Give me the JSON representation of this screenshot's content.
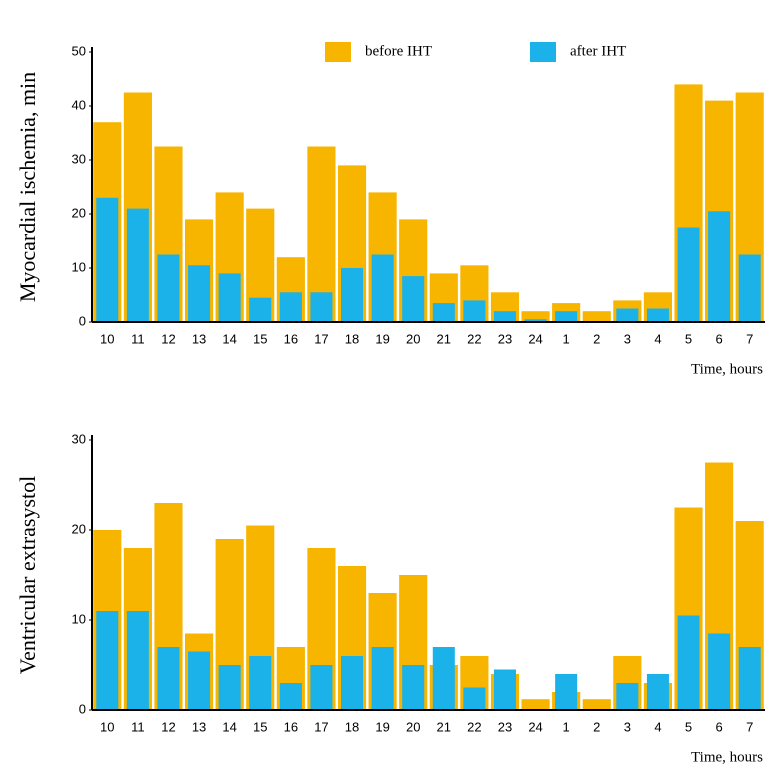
{
  "chart_data": [
    {
      "type": "bar",
      "y_label": "Myocardial ischemia, min",
      "x_label": "Time, hours",
      "categories": [
        "10",
        "11",
        "12",
        "13",
        "14",
        "15",
        "16",
        "17",
        "18",
        "19",
        "20",
        "21",
        "22",
        "23",
        "24",
        "1",
        "2",
        "3",
        "4",
        "5",
        "6",
        "7"
      ],
      "series": [
        {
          "name": "before IHT",
          "color": "#f7b500",
          "values": [
            37,
            42.5,
            32.5,
            19,
            24,
            21,
            12,
            32.5,
            29,
            24,
            19,
            9,
            10.5,
            5.5,
            2,
            3.5,
            2,
            4,
            5.5,
            44,
            41,
            42.5
          ]
        },
        {
          "name": "after IHT",
          "color": "#1ab2e8",
          "values": [
            23,
            21,
            12.5,
            10.5,
            9,
            4.5,
            5.5,
            5.5,
            10,
            12.5,
            8.5,
            3.5,
            4,
            2,
            0.5,
            2,
            0,
            2.5,
            2.5,
            17.5,
            20.5,
            12.5
          ]
        }
      ],
      "ylim": [
        0,
        50
      ],
      "yticks": [
        0,
        10,
        20,
        30,
        40,
        50
      ],
      "legend": "top"
    },
    {
      "type": "bar",
      "y_label": "Ventricular extrasystol",
      "x_label": "Time, hours",
      "categories": [
        "10",
        "11",
        "12",
        "13",
        "14",
        "15",
        "16",
        "17",
        "18",
        "19",
        "20",
        "21",
        "22",
        "23",
        "24",
        "1",
        "2",
        "3",
        "4",
        "5",
        "6",
        "7"
      ],
      "series": [
        {
          "name": "before IHT",
          "color": "#f7b500",
          "values": [
            20,
            18,
            23,
            8.5,
            19,
            20.5,
            7,
            18,
            16,
            13,
            15,
            5,
            6,
            4,
            1.2,
            2,
            1.2,
            6,
            3,
            22.5,
            27.5,
            21
          ]
        },
        {
          "name": "after IHT",
          "color": "#1ab2e8",
          "values": [
            11,
            11,
            7,
            6.5,
            5,
            6,
            3,
            5,
            6,
            7,
            5,
            7,
            2.5,
            4.5,
            0,
            4,
            0,
            3,
            4,
            10.5,
            8.5,
            7
          ]
        }
      ],
      "ylim": [
        0,
        30
      ],
      "yticks": [
        0,
        10,
        20,
        30
      ]
    }
  ]
}
